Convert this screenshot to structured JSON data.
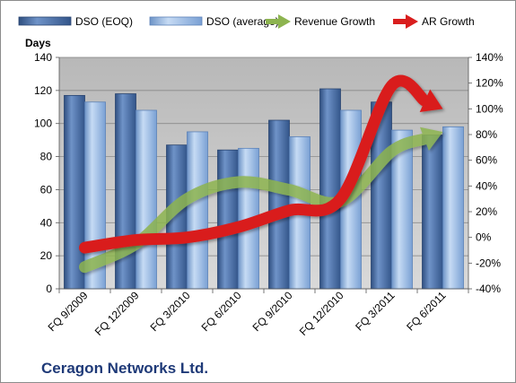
{
  "chart_data": {
    "type": "bar",
    "title": "Ceragon Networks Ltd.",
    "categories": [
      "FQ 9/2009",
      "FQ 12/2009",
      "FQ 3/2010",
      "FQ 6/2010",
      "FQ 9/2010",
      "FQ 12/2010",
      "FQ 3/2011",
      "FQ 6/2011"
    ],
    "left_axis": {
      "label": "Days",
      "range": [
        0,
        140
      ],
      "ticks": [
        "0",
        "20",
        "40",
        "60",
        "80",
        "100",
        "120",
        "140"
      ]
    },
    "right_axis": {
      "range": [
        -40,
        140
      ],
      "ticks": [
        "-40%",
        "-20%",
        "0%",
        "20%",
        "40%",
        "60%",
        "80%",
        "100%",
        "120%",
        "140%"
      ]
    },
    "series": [
      {
        "name": "DSO (EOQ)",
        "type": "bar",
        "axis": "left",
        "color": "#4a6fa8",
        "values": [
          117,
          118,
          87,
          84,
          102,
          121,
          113,
          93
        ]
      },
      {
        "name": "DSO (average)",
        "type": "bar",
        "axis": "left",
        "color": "#8fb4e3",
        "values": [
          113,
          108,
          95,
          85,
          92,
          108,
          96,
          98
        ]
      },
      {
        "name": "Revenue Growth",
        "type": "line",
        "axis": "right",
        "color": "#8db450",
        "unit": "%",
        "values": [
          -23,
          -5,
          30,
          43,
          37,
          28,
          67,
          82
        ]
      },
      {
        "name": "AR Growth",
        "type": "line",
        "axis": "right",
        "color": "#d91e1e",
        "unit": "%",
        "values": [
          -8,
          -2,
          0,
          8,
          21,
          30,
          118,
          100
        ]
      }
    ],
    "legend_position": "top",
    "grid": true
  }
}
